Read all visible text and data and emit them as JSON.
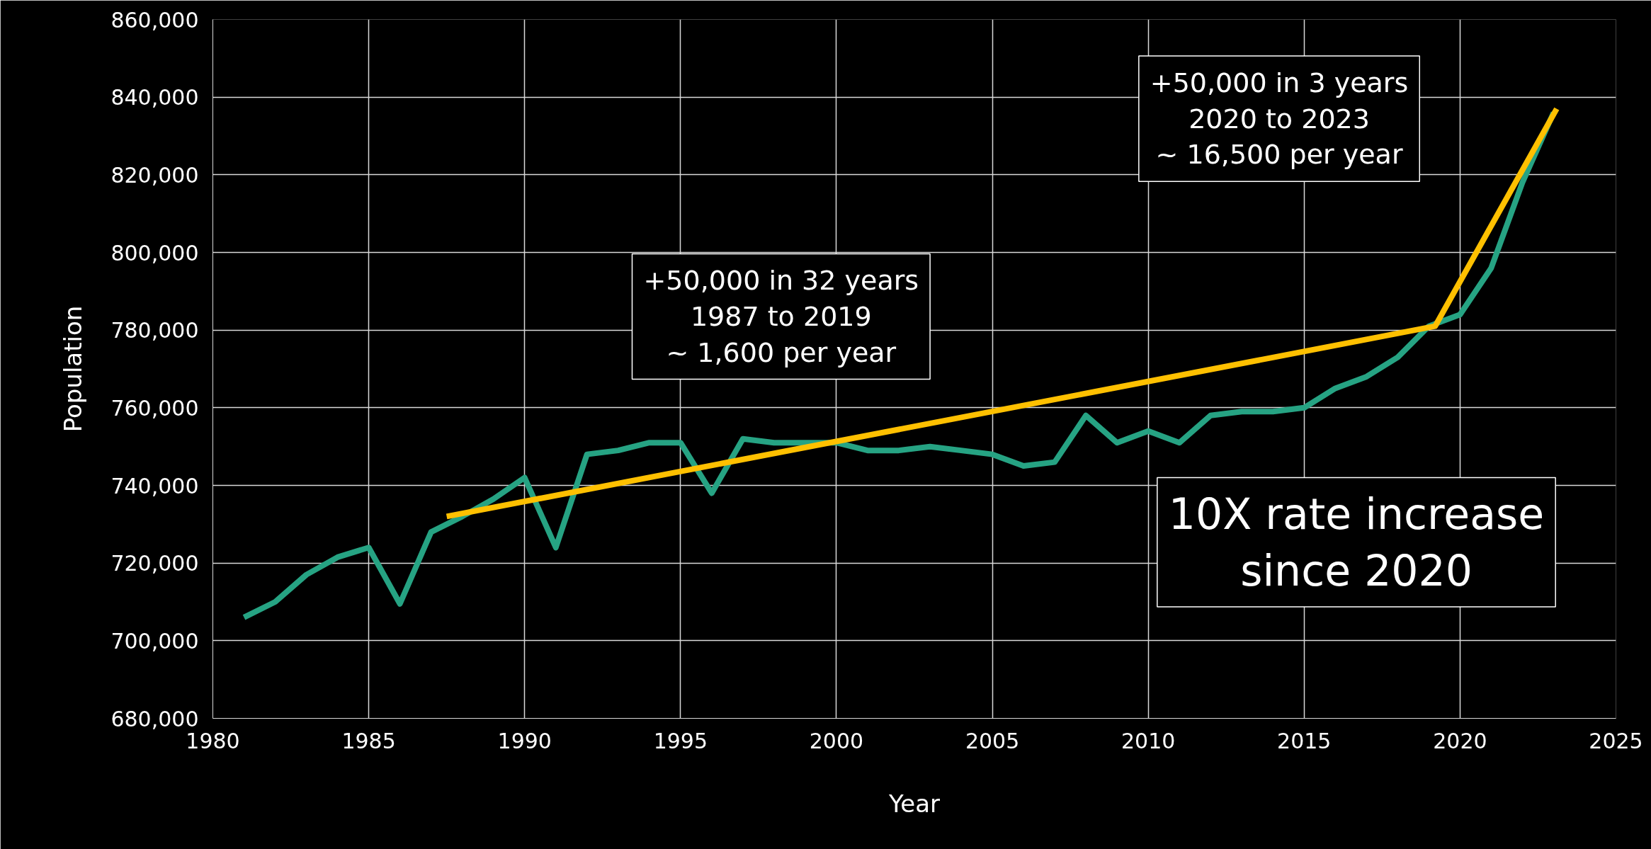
{
  "chart_data": {
    "type": "line",
    "xlabel": "Year",
    "ylabel": "Population",
    "x": [
      1981,
      1982,
      1983,
      1984,
      1985,
      1986,
      1987,
      1988,
      1989,
      1990,
      1991,
      1992,
      1993,
      1994,
      1995,
      1996,
      1997,
      1998,
      1999,
      2000,
      2001,
      2002,
      2003,
      2004,
      2005,
      2006,
      2007,
      2008,
      2009,
      2010,
      2011,
      2012,
      2013,
      2014,
      2015,
      2016,
      2017,
      2018,
      2019,
      2020,
      2021,
      2022,
      2023
    ],
    "series": [
      {
        "color": "#26a383",
        "values": [
          706000,
          710000,
          717000,
          721500,
          724000,
          709500,
          728000,
          732000,
          736500,
          742000,
          724000,
          748000,
          749000,
          751000,
          751000,
          738000,
          752000,
          751000,
          751000,
          751000,
          749000,
          749000,
          750000,
          749000,
          748000,
          745000,
          746000,
          758000,
          751000,
          754000,
          751000,
          758000,
          759000,
          759000,
          760000,
          765000,
          768000,
          773000,
          781000,
          784000,
          796000,
          818000,
          836000
        ]
      },
      {
        "color": "#ffc000",
        "x": [
          1987.5,
          2019.2,
          2023.1
        ],
        "values": [
          732000,
          781000,
          837000
        ]
      }
    ],
    "xlim": [
      1980,
      2025
    ],
    "xticks": [
      1980,
      1985,
      1990,
      1995,
      2000,
      2005,
      2010,
      2015,
      2020,
      2025
    ],
    "ylim": [
      680000,
      860000
    ],
    "yticks": [
      {
        "value": 680000,
        "label": "680,000"
      },
      {
        "value": 700000,
        "label": "700,000"
      },
      {
        "value": 720000,
        "label": "720,000"
      },
      {
        "value": 740000,
        "label": "740,000"
      },
      {
        "value": 760000,
        "label": "760,000"
      },
      {
        "value": 780000,
        "label": "780,000"
      },
      {
        "value": 800000,
        "label": "800,000"
      },
      {
        "value": 820000,
        "label": "820,000"
      },
      {
        "value": 840000,
        "label": "840,000"
      },
      {
        "value": 860000,
        "label": "860,000"
      }
    ],
    "grid": true,
    "marker": "none",
    "line_style": "solid",
    "annotations": [
      "+50,000 in 32 years\n1987 to 2019\n~ 1,600 per year",
      "+50,000 in 3 years\n2020 to 2023\n~ 16,500 per year",
      "10X rate increase\nsince 2020"
    ]
  }
}
